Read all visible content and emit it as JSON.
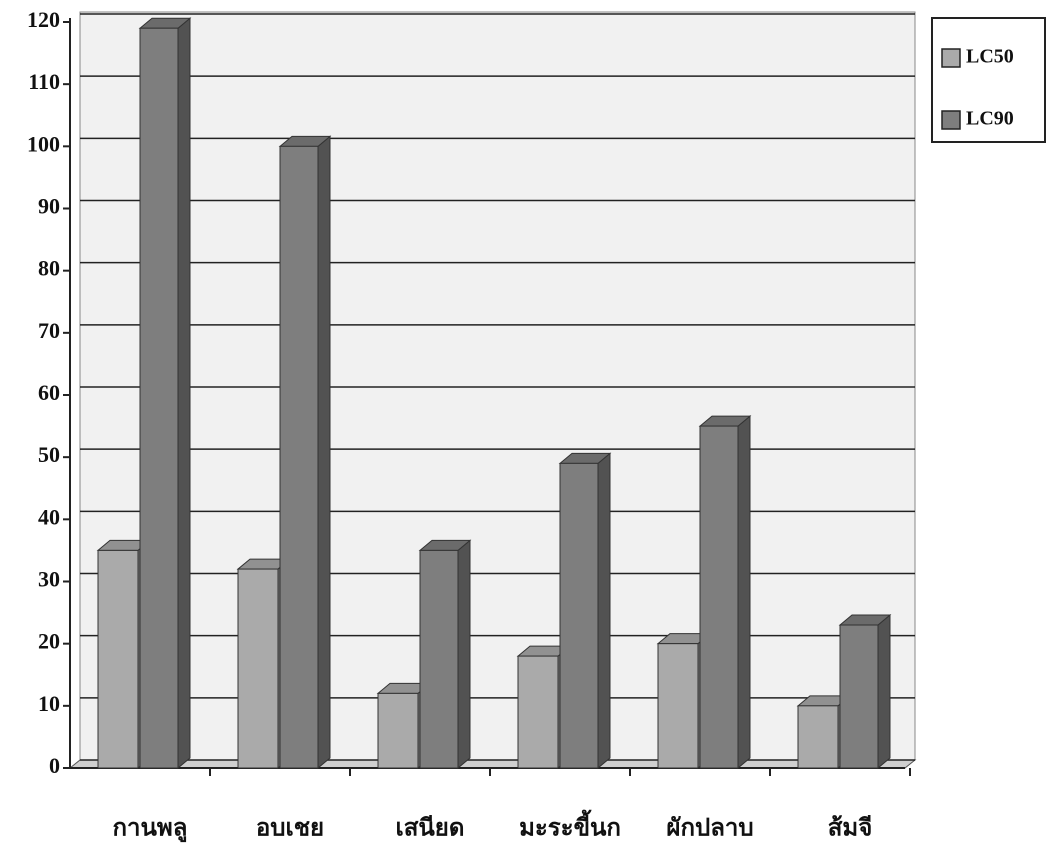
{
  "chart_data": {
    "type": "bar3d",
    "categories": [
      "กานพลู",
      "อบเชย",
      "เสนียด",
      "มะระขี้นก",
      "ผักปลาบ",
      "ส้มจี"
    ],
    "series": [
      {
        "name": "LC50",
        "color": "#aaaaaa",
        "values": [
          35,
          32,
          12,
          18,
          20,
          10
        ]
      },
      {
        "name": "LC90",
        "color": "#7e7e7e",
        "values": [
          119,
          100,
          35,
          49,
          55,
          23
        ]
      }
    ],
    "ylim": [
      0,
      120
    ],
    "yticks": [
      0,
      10,
      20,
      30,
      40,
      50,
      60,
      70,
      80,
      90,
      100,
      110,
      120
    ],
    "grid": true
  }
}
